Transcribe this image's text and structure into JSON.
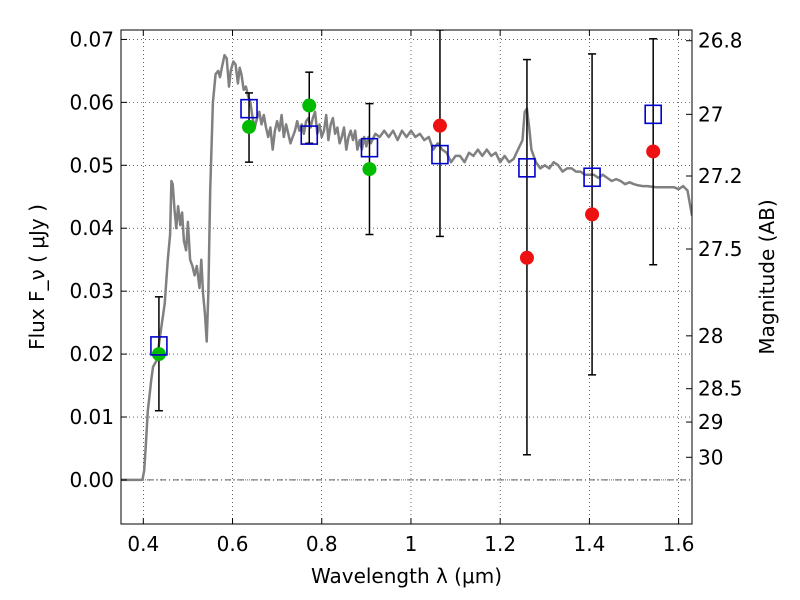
{
  "chart_data": {
    "type": "scatter",
    "title": "",
    "xlabel": "Wavelength  λ (μm)",
    "ylabel": "Flux  F_ν  ( μJy )",
    "ylabel_right": "Magnitude (AB)",
    "xlim": [
      0.35,
      1.63
    ],
    "ylim": [
      -0.007,
      0.0715
    ],
    "grid": true,
    "x_ticks": [
      {
        "value": 0.4,
        "label": "0.4"
      },
      {
        "value": 0.6,
        "label": "0.6"
      },
      {
        "value": 0.8,
        "label": "0.8"
      },
      {
        "value": 1.0,
        "label": "1"
      },
      {
        "value": 1.2,
        "label": "1.2"
      },
      {
        "value": 1.4,
        "label": "1.4"
      },
      {
        "value": 1.6,
        "label": "1.6"
      }
    ],
    "y_ticks": [
      {
        "value": 0.0,
        "label": "0.00"
      },
      {
        "value": 0.01,
        "label": "0.01"
      },
      {
        "value": 0.02,
        "label": "0.02"
      },
      {
        "value": 0.03,
        "label": "0.03"
      },
      {
        "value": 0.04,
        "label": "0.04"
      },
      {
        "value": 0.05,
        "label": "0.05"
      },
      {
        "value": 0.06,
        "label": "0.06"
      },
      {
        "value": 0.07,
        "label": "0.07"
      }
    ],
    "right_ticks": [
      {
        "flux": 0.0698,
        "label": "26.8"
      },
      {
        "flux": 0.0581,
        "label": "27"
      },
      {
        "flux": 0.0483,
        "label": "27.2"
      },
      {
        "flux": 0.0367,
        "label": "27.5"
      },
      {
        "flux": 0.0229,
        "label": "28"
      },
      {
        "flux": 0.0145,
        "label": "28.5"
      },
      {
        "flux": 0.0092,
        "label": "29"
      },
      {
        "flux": 0.0036,
        "label": "30"
      }
    ],
    "series": [
      {
        "kind": "line",
        "color": "#808080",
        "points": [
          [
            0.35,
            0.0
          ],
          [
            0.385,
            0.0
          ],
          [
            0.398,
            0.0
          ],
          [
            0.402,
            0.0015
          ],
          [
            0.406,
            0.006
          ],
          [
            0.41,
            0.011
          ],
          [
            0.414,
            0.0135
          ],
          [
            0.418,
            0.016
          ],
          [
            0.422,
            0.018
          ],
          [
            0.43,
            0.019
          ],
          [
            0.44,
            0.024
          ],
          [
            0.448,
            0.028
          ],
          [
            0.455,
            0.035
          ],
          [
            0.46,
            0.039
          ],
          [
            0.463,
            0.0475
          ],
          [
            0.466,
            0.047
          ],
          [
            0.47,
            0.043
          ],
          [
            0.474,
            0.04
          ],
          [
            0.478,
            0.0435
          ],
          [
            0.483,
            0.0405
          ],
          [
            0.487,
            0.0425
          ],
          [
            0.491,
            0.038
          ],
          [
            0.496,
            0.0365
          ],
          [
            0.5,
            0.041
          ],
          [
            0.505,
            0.035
          ],
          [
            0.51,
            0.034
          ],
          [
            0.515,
            0.0325
          ],
          [
            0.52,
            0.034
          ],
          [
            0.526,
            0.0305
          ],
          [
            0.53,
            0.035
          ],
          [
            0.534,
            0.0295
          ],
          [
            0.538,
            0.0265
          ],
          [
            0.542,
            0.022
          ],
          [
            0.546,
            0.03
          ],
          [
            0.55,
            0.046
          ],
          [
            0.556,
            0.06
          ],
          [
            0.562,
            0.0645
          ],
          [
            0.568,
            0.065
          ],
          [
            0.572,
            0.064
          ],
          [
            0.576,
            0.0655
          ],
          [
            0.582,
            0.0675
          ],
          [
            0.587,
            0.067
          ],
          [
            0.592,
            0.0625
          ],
          [
            0.596,
            0.065
          ],
          [
            0.602,
            0.0665
          ],
          [
            0.607,
            0.066
          ],
          [
            0.612,
            0.063
          ],
          [
            0.616,
            0.0655
          ],
          [
            0.62,
            0.0645
          ],
          [
            0.625,
            0.062
          ],
          [
            0.63,
            0.0625
          ],
          [
            0.635,
            0.061
          ],
          [
            0.64,
            0.06
          ],
          [
            0.645,
            0.0575
          ],
          [
            0.65,
            0.056
          ],
          [
            0.655,
            0.0575
          ],
          [
            0.66,
            0.0585
          ],
          [
            0.665,
            0.0565
          ],
          [
            0.67,
            0.058
          ],
          [
            0.675,
            0.056
          ],
          [
            0.68,
            0.0545
          ],
          [
            0.685,
            0.056
          ],
          [
            0.69,
            0.0525
          ],
          [
            0.695,
            0.0555
          ],
          [
            0.7,
            0.057
          ],
          [
            0.705,
            0.0555
          ],
          [
            0.71,
            0.058
          ],
          [
            0.715,
            0.0545
          ],
          [
            0.72,
            0.0565
          ],
          [
            0.725,
            0.055
          ],
          [
            0.73,
            0.0535
          ],
          [
            0.735,
            0.0545
          ],
          [
            0.74,
            0.0555
          ],
          [
            0.745,
            0.057
          ],
          [
            0.75,
            0.0555
          ],
          [
            0.755,
            0.0565
          ],
          [
            0.76,
            0.055
          ],
          [
            0.765,
            0.057
          ],
          [
            0.77,
            0.0575
          ],
          [
            0.775,
            0.056
          ],
          [
            0.78,
            0.0575
          ],
          [
            0.785,
            0.0585
          ],
          [
            0.79,
            0.055
          ],
          [
            0.795,
            0.0565
          ],
          [
            0.8,
            0.0545
          ],
          [
            0.805,
            0.0555
          ],
          [
            0.81,
            0.058
          ],
          [
            0.815,
            0.054
          ],
          [
            0.82,
            0.0565
          ],
          [
            0.825,
            0.0575
          ],
          [
            0.83,
            0.055
          ],
          [
            0.835,
            0.056
          ],
          [
            0.84,
            0.0535
          ],
          [
            0.845,
            0.0545
          ],
          [
            0.85,
            0.056
          ],
          [
            0.855,
            0.0525
          ],
          [
            0.86,
            0.0545
          ],
          [
            0.865,
            0.0555
          ],
          [
            0.87,
            0.054
          ],
          [
            0.875,
            0.0555
          ],
          [
            0.88,
            0.0525
          ],
          [
            0.885,
            0.054
          ],
          [
            0.89,
            0.0525
          ],
          [
            0.895,
            0.0545
          ],
          [
            0.9,
            0.053
          ],
          [
            0.905,
            0.0545
          ],
          [
            0.91,
            0.0535
          ],
          [
            0.92,
            0.055
          ],
          [
            0.93,
            0.0545
          ],
          [
            0.94,
            0.0555
          ],
          [
            0.95,
            0.0545
          ],
          [
            0.96,
            0.0555
          ],
          [
            0.97,
            0.054
          ],
          [
            0.98,
            0.0555
          ],
          [
            0.99,
            0.0545
          ],
          [
            1.0,
            0.0555
          ],
          [
            1.01,
            0.0545
          ],
          [
            1.02,
            0.055
          ],
          [
            1.03,
            0.054
          ],
          [
            1.04,
            0.0545
          ],
          [
            1.05,
            0.0525
          ],
          [
            1.06,
            0.0535
          ],
          [
            1.07,
            0.0525
          ],
          [
            1.08,
            0.052
          ],
          [
            1.09,
            0.0505
          ],
          [
            1.1,
            0.0515
          ],
          [
            1.11,
            0.0515
          ],
          [
            1.12,
            0.0505
          ],
          [
            1.13,
            0.052
          ],
          [
            1.14,
            0.0515
          ],
          [
            1.15,
            0.0525
          ],
          [
            1.16,
            0.0515
          ],
          [
            1.17,
            0.0525
          ],
          [
            1.18,
            0.0515
          ],
          [
            1.19,
            0.052
          ],
          [
            1.2,
            0.0505
          ],
          [
            1.21,
            0.0515
          ],
          [
            1.22,
            0.0505
          ],
          [
            1.23,
            0.051
          ],
          [
            1.24,
            0.0525
          ],
          [
            1.25,
            0.054
          ],
          [
            1.255,
            0.0585
          ],
          [
            1.26,
            0.059
          ],
          [
            1.265,
            0.056
          ],
          [
            1.27,
            0.0525
          ],
          [
            1.28,
            0.0505
          ],
          [
            1.29,
            0.0495
          ],
          [
            1.3,
            0.05
          ],
          [
            1.31,
            0.0495
          ],
          [
            1.32,
            0.0505
          ],
          [
            1.33,
            0.05
          ],
          [
            1.34,
            0.049
          ],
          [
            1.35,
            0.0495
          ],
          [
            1.36,
            0.0495
          ],
          [
            1.37,
            0.049
          ],
          [
            1.38,
            0.049
          ],
          [
            1.39,
            0.0485
          ],
          [
            1.4,
            0.0485
          ],
          [
            1.41,
            0.0485
          ],
          [
            1.42,
            0.048
          ],
          [
            1.43,
            0.0485
          ],
          [
            1.44,
            0.048
          ],
          [
            1.45,
            0.0475
          ],
          [
            1.46,
            0.0478
          ],
          [
            1.47,
            0.0475
          ],
          [
            1.48,
            0.047
          ],
          [
            1.49,
            0.0473
          ],
          [
            1.5,
            0.047
          ],
          [
            1.51,
            0.0468
          ],
          [
            1.52,
            0.0467
          ],
          [
            1.53,
            0.0467
          ],
          [
            1.54,
            0.0466
          ],
          [
            1.55,
            0.0465
          ],
          [
            1.56,
            0.0465
          ],
          [
            1.57,
            0.0465
          ],
          [
            1.58,
            0.0465
          ],
          [
            1.59,
            0.0465
          ],
          [
            1.6,
            0.0462
          ],
          [
            1.61,
            0.0467
          ],
          [
            1.62,
            0.046
          ],
          [
            1.63,
            0.042
          ]
        ]
      },
      {
        "kind": "open-square",
        "color": "#0000cc",
        "points": [
          [
            0.435,
            0.0213
          ],
          [
            0.637,
            0.059
          ],
          [
            0.772,
            0.0548
          ],
          [
            0.907,
            0.0528
          ],
          [
            1.065,
            0.0517
          ],
          [
            1.26,
            0.0496
          ],
          [
            1.406,
            0.0481
          ],
          [
            1.543,
            0.0581
          ]
        ]
      },
      {
        "kind": "filled-circle",
        "color": "#00bb00",
        "points": [
          [
            0.435,
            0.02
          ],
          [
            0.637,
            0.0561
          ],
          [
            0.772,
            0.0595
          ],
          [
            0.907,
            0.0494
          ]
        ]
      },
      {
        "kind": "filled-circle",
        "color": "#ee1111",
        "points": [
          [
            1.065,
            0.0563
          ],
          [
            1.26,
            0.0353
          ],
          [
            1.406,
            0.0422
          ],
          [
            1.543,
            0.0522
          ]
        ]
      },
      {
        "kind": "error-bar",
        "color": "#000000",
        "bars": [
          {
            "x": 0.435,
            "low": 0.011,
            "high": 0.0291
          },
          {
            "x": 0.637,
            "low": 0.0505,
            "high": 0.0615
          },
          {
            "x": 0.772,
            "low": 0.0535,
            "high": 0.0648
          },
          {
            "x": 0.907,
            "low": 0.039,
            "high": 0.0598
          },
          {
            "x": 1.065,
            "low": 0.0387,
            "high": 0.0715
          },
          {
            "x": 1.26,
            "low": 0.004,
            "high": 0.0668
          },
          {
            "x": 1.406,
            "low": 0.0167,
            "high": 0.0677
          },
          {
            "x": 1.543,
            "low": 0.0342,
            "high": 0.0701
          }
        ]
      }
    ]
  }
}
